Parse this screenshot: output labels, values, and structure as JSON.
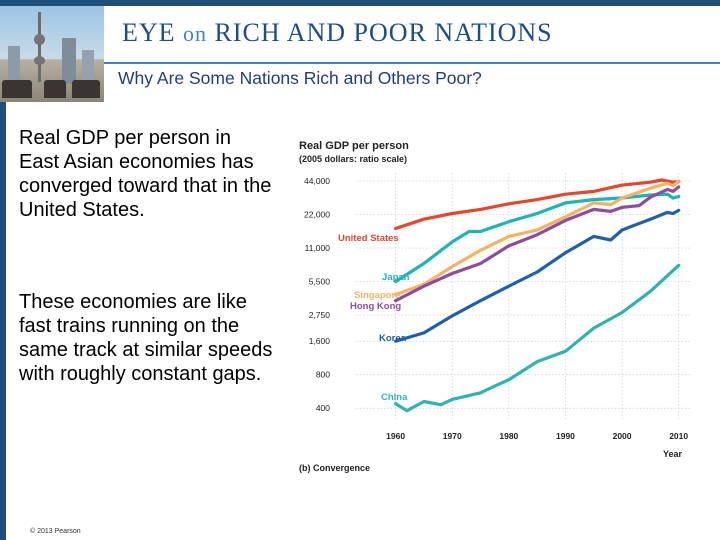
{
  "header": {
    "title_main": "EYE",
    "title_on": "on",
    "title_rest": "RICH AND POOR NATIONS",
    "subtitle": "Why Are Some Nations Rich and Others Poor?"
  },
  "body": {
    "paragraph1": "Real GDP per  person in East Asian economies has converged toward that in the United States.",
    "paragraph2": "These economies are like fast trains running on the same track at similar speeds with roughly constant gaps."
  },
  "footer": {
    "copyright": "© 2013 Pearson"
  },
  "colors": {
    "title": "#1a4f86",
    "subtitle": "#1f3f7a",
    "bar": "#1f4e79",
    "us": "#e4472b",
    "japan": "#1fb2b6",
    "singapore": "#f3b363",
    "hongkong": "#8b4ca3",
    "korea": "#1f5fad",
    "china": "#2fb3b0"
  },
  "chart_data": {
    "type": "line",
    "title": "Real GDP per person",
    "subtitle": "(2005 dollars: ratio scale)",
    "caption": "(b) Convergence",
    "xlabel": "Year",
    "ylabel": "",
    "scale": "log",
    "xlim": [
      1953,
      2012
    ],
    "ylim": [
      320,
      52000
    ],
    "xticks": [
      1960,
      1970,
      1980,
      1990,
      2000,
      2010
    ],
    "xtick_labels": [
      "1960",
      "1970",
      "1980",
      "1990",
      "2000",
      "2010"
    ],
    "yticks": [
      44000,
      22000,
      11000,
      5500,
      2750,
      1600,
      800,
      400
    ],
    "ytick_labels": [
      "44,000",
      "22,000",
      "11,000",
      "5,500",
      "2,750",
      "1,600",
      "800",
      "400"
    ],
    "series": [
      {
        "name": "United States",
        "label": "United States",
        "color": "#e4472b",
        "x": [
          1960,
          1965,
          1970,
          1975,
          1980,
          1985,
          1990,
          1995,
          2000,
          2005,
          2007,
          2009,
          2010
        ],
        "y": [
          16500,
          20000,
          22500,
          24500,
          27500,
          30000,
          33500,
          35500,
          40500,
          43000,
          45000,
          43000,
          43500
        ]
      },
      {
        "name": "Japan",
        "label": "Japan",
        "color": "#1fb2b6",
        "x": [
          1960,
          1965,
          1970,
          1973,
          1975,
          1980,
          1985,
          1990,
          1995,
          2000,
          2005,
          2008,
          2009,
          2010
        ],
        "y": [
          5500,
          8000,
          12500,
          15500,
          15500,
          19000,
          22500,
          28000,
          30000,
          31000,
          33000,
          33500,
          31000,
          32000
        ]
      },
      {
        "name": "Singapore",
        "label": "Singapore",
        "color": "#f3b363",
        "x": [
          1960,
          1965,
          1970,
          1975,
          1980,
          1985,
          1990,
          1995,
          1998,
          2000,
          2005,
          2008,
          2009,
          2010
        ],
        "y": [
          4200,
          5200,
          7500,
          10500,
          14000,
          16000,
          21000,
          28000,
          27000,
          31000,
          38000,
          42000,
          40000,
          44000
        ]
      },
      {
        "name": "Hong Kong",
        "label": "Hong Kong",
        "color": "#8b4ca3",
        "x": [
          1960,
          1965,
          1970,
          1975,
          1980,
          1985,
          1990,
          1995,
          1998,
          2000,
          2003,
          2005,
          2008,
          2009,
          2010
        ],
        "y": [
          3700,
          5000,
          6500,
          8000,
          11500,
          14500,
          19500,
          24500,
          23500,
          25500,
          26500,
          31500,
          37000,
          35500,
          39000
        ]
      },
      {
        "name": "Korea",
        "label": "Korea",
        "color": "#1f5fad",
        "x": [
          1960,
          1965,
          1970,
          1975,
          1980,
          1985,
          1990,
          1995,
          1998,
          2000,
          2005,
          2008,
          2009,
          2010
        ],
        "y": [
          1600,
          1900,
          2700,
          3700,
          5000,
          6700,
          10000,
          14000,
          13000,
          16000,
          20000,
          23000,
          22500,
          24000
        ]
      },
      {
        "name": "China",
        "label": "China",
        "color": "#2fb3b0",
        "x": [
          1960,
          1962,
          1965,
          1968,
          1970,
          1975,
          1978,
          1980,
          1985,
          1990,
          1995,
          2000,
          2005,
          2010
        ],
        "y": [
          440,
          380,
          460,
          430,
          480,
          550,
          650,
          720,
          1050,
          1300,
          2100,
          2900,
          4500,
          7700
        ]
      }
    ]
  }
}
